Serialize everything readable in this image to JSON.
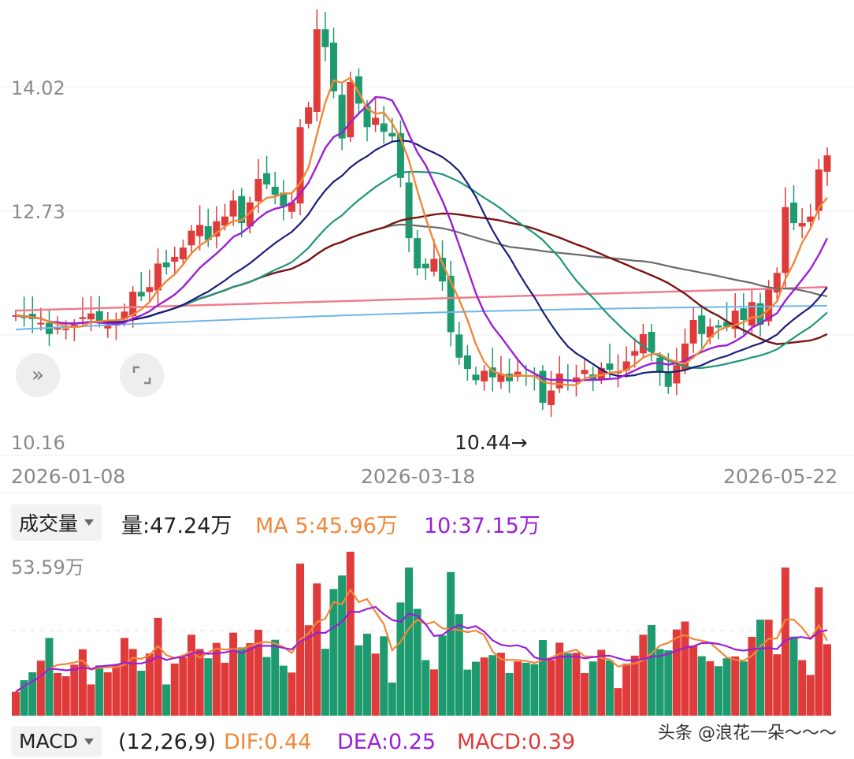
{
  "price_axis": {
    "ticks": [
      "14.02",
      "12.73",
      "10.16"
    ]
  },
  "min_marker": "10.44→",
  "dates": [
    "2026-01-08",
    "2026-03-18",
    "2026-05-22"
  ],
  "volume_panel": {
    "selector_label": "成交量",
    "vol_text": "量:47.24万",
    "ma5_text": "MA 5:45.96万",
    "ma10_text": "10:37.15万",
    "max_label": "53.59万"
  },
  "macd_panel": {
    "selector_label": "MACD",
    "params": "(12,26,9)",
    "dif_text": "DIF:0.44",
    "dea_text": "DEA:0.25",
    "macd_text": "MACD:0.39"
  },
  "watermark": "头条 @浪花一朵～～～",
  "colors": {
    "up": "#e03b3b",
    "down": "#1e9b6e",
    "ma5": "#f0883a",
    "ma10": "#9b1fd6",
    "ma20": "#1a1f7a",
    "ma30": "#20967a",
    "ma60": "#6a6a6a",
    "ma120": "#7a1414",
    "ma250": "#f07a8a",
    "ma_light": "#6fb6e8"
  },
  "chart_data": {
    "type": "candlestick",
    "ylim": [
      10.16,
      14.6
    ],
    "closes": [
      11.5,
      11.48,
      11.46,
      11.42,
      11.3,
      11.38,
      11.36,
      11.4,
      11.48,
      11.52,
      11.42,
      11.4,
      11.42,
      11.54,
      11.75,
      11.7,
      11.8,
      12.05,
      12.01,
      12.12,
      12.22,
      12.4,
      12.46,
      12.3,
      12.5,
      12.55,
      12.72,
      12.48,
      12.7,
      12.95,
      12.89,
      12.78,
      12.66,
      12.7,
      13.5,
      13.71,
      14.54,
      14.35,
      13.88,
      13.38,
      13.98,
      13.75,
      13.5,
      13.6,
      13.45,
      13.4,
      12.96,
      12.32,
      12.0,
      12.0,
      12.1,
      11.86,
      11.32,
      11.05,
      10.93,
      10.81,
      10.91,
      10.84,
      10.88,
      10.8,
      10.9,
      10.85,
      10.85,
      10.57,
      10.7,
      10.88,
      10.8,
      10.84,
      10.92,
      10.82,
      10.94,
      10.92,
      10.9,
      11.01,
      11.12,
      11.3,
      11.11,
      10.9,
      10.74,
      10.97,
      11.2,
      11.45,
      11.3,
      11.38,
      11.37,
      11.38,
      11.55,
      11.45,
      11.64,
      11.4,
      11.79,
      11.95,
      12.65,
      12.48,
      12.48,
      12.55,
      13.05,
      13.2
    ]
  }
}
